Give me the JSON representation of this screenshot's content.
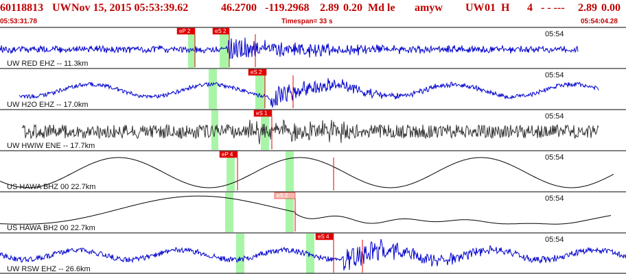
{
  "header": {
    "event_id": "60118813",
    "network": "UW",
    "datetime": "Nov 15, 2015 05:53:39.62",
    "latitude": "46.2700",
    "longitude": "-119.2968",
    "magnitude": "2.89",
    "mag_error": "0.20",
    "mag_type": "Md le",
    "author": "amyw",
    "network2": "UW",
    "version": "01",
    "status": "H",
    "count": "4",
    "flags": "- - ---",
    "mag_repeat": "2.89",
    "trailing": "0.00"
  },
  "timebar": {
    "start_time": "05:53:31.78",
    "timespan": "Timespan=  33 s",
    "end_time": "05:54:04.28"
  },
  "colors": {
    "header_red": "#c00000",
    "trace_blue": "#0000cc",
    "trace_black": "#000000",
    "trace_dark": "#333333",
    "pick_red": "#e00000",
    "pick_pink": "#f4b8b0",
    "window_green": "#a8f5a8",
    "divider": "#000000"
  },
  "panels": [
    {
      "label": "UW RED EHZ -- 11.3km",
      "time_tick": "05:54",
      "trace_color": "#0000cc",
      "style": "noisy",
      "picks": [
        {
          "label": "eP 2",
          "style": "red"
        },
        {
          "label": "eS 2",
          "style": "red"
        }
      ]
    },
    {
      "label": "UW H2O EHZ -- 17.0km",
      "time_tick": "05:54",
      "trace_color": "#0000cc",
      "style": "wavy",
      "picks": [
        {
          "label": "eS 2",
          "style": "red"
        }
      ]
    },
    {
      "label": "UW HWIW ENE -- 17.7km",
      "time_tick": "05:54",
      "trace_color": "#333333",
      "style": "dense",
      "picks": [
        {
          "label": "eS 1",
          "style": "red"
        }
      ]
    },
    {
      "label": "US HAWA BHZ 00 22.7km",
      "time_tick": "05:54",
      "trace_color": "#000000",
      "style": "longwave",
      "picks": [
        {
          "label": "eP 4",
          "style": "red"
        }
      ]
    },
    {
      "label": "US HAWA BH2 00 22.7km",
      "time_tick": "05:54",
      "trace_color": "#000000",
      "style": "longwave2",
      "picks": [
        {
          "label": "eS 2",
          "style": "pink"
        }
      ]
    },
    {
      "label": "UW RSW EHZ -- 26.6km",
      "time_tick": "05:54",
      "trace_color": "#0000cc",
      "style": "wavy2",
      "picks": [
        {
          "label": "eS 4",
          "style": "red"
        }
      ]
    }
  ]
}
